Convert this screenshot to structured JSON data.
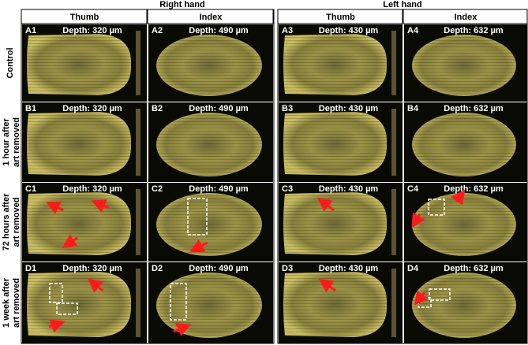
{
  "headers": {
    "right_hand": "Right hand",
    "left_hand": "Left hand"
  },
  "columns": [
    "Thumb",
    "Index",
    "Thumb",
    "Index"
  ],
  "rows": [
    {
      "lines": [
        "Control"
      ],
      "panels": [
        {
          "id": "A1",
          "depth": "Depth: 320 µm"
        },
        {
          "id": "A2",
          "depth": "Depth: 490 µm"
        },
        {
          "id": "A3",
          "depth": "Depth: 430 µm"
        },
        {
          "id": "A4",
          "depth": "Depth: 632 µm"
        }
      ]
    },
    {
      "lines": [
        "1 hour after",
        "art removed"
      ],
      "panels": [
        {
          "id": "B1",
          "depth": "Depth: 320 µm"
        },
        {
          "id": "B2",
          "depth": "Depth: 490 µm"
        },
        {
          "id": "B3",
          "depth": "Depth: 430 µm"
        },
        {
          "id": "B4",
          "depth": "Depth: 632 µm"
        }
      ]
    },
    {
      "lines": [
        "72 hours after",
        "art removed"
      ],
      "panels": [
        {
          "id": "C1",
          "depth": "Depth: 320 µm"
        },
        {
          "id": "C2",
          "depth": "Depth: 490 µm"
        },
        {
          "id": "C3",
          "depth": "Depth: 430 µm"
        },
        {
          "id": "C4",
          "depth": "Depth: 632 µm"
        }
      ]
    },
    {
      "lines": [
        "1 week after",
        "art removed"
      ],
      "panels": [
        {
          "id": "D1",
          "depth": "Depth: 320 µm"
        },
        {
          "id": "D2",
          "depth": "Depth: 490 µm"
        },
        {
          "id": "D3",
          "depth": "Depth: 430 µm"
        },
        {
          "id": "D4",
          "depth": "Depth: 632 µm"
        }
      ]
    }
  ]
}
